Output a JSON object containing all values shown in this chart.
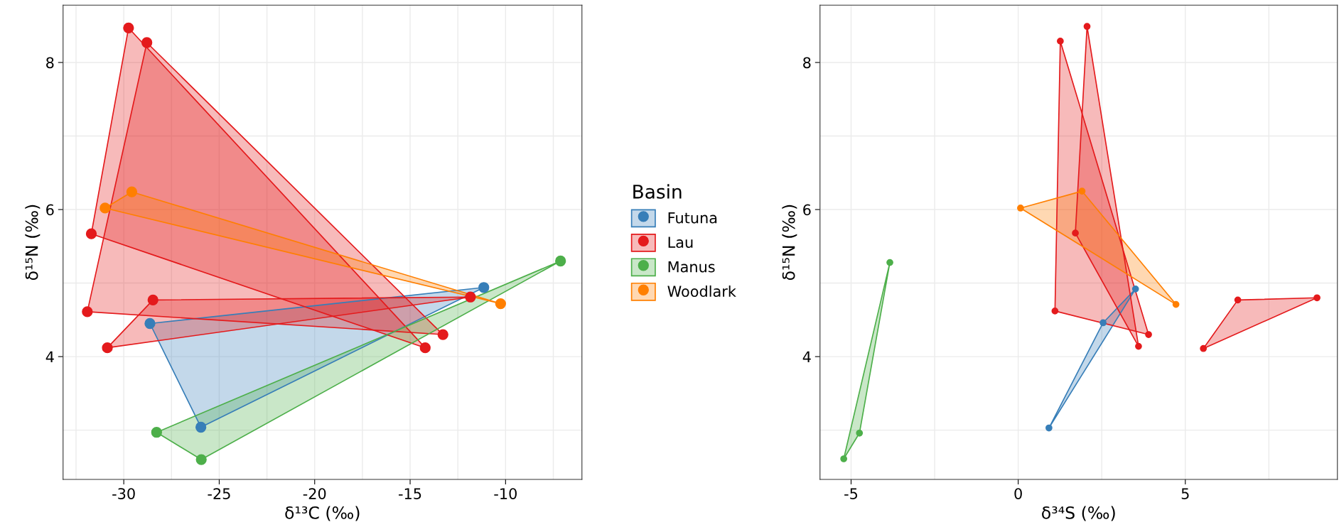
{
  "chart_data": [
    {
      "type": "scatter",
      "xlabel": "δ¹³C (‰)",
      "ylabel": "δ¹⁵N (‰)",
      "legend_title": "Basin",
      "legend": "right",
      "grid": true,
      "marker": "circle",
      "xlim": [
        -33.18,
        -6.0
      ],
      "ylim": [
        2.33,
        8.78
      ],
      "xticks": [
        {
          "value": -32.5,
          "label": null
        },
        -30,
        {
          "value": -27.5,
          "label": null
        },
        -25,
        {
          "value": -22.5,
          "label": null
        },
        -20,
        {
          "value": -17.5,
          "label": null
        },
        -15,
        {
          "value": -12.5,
          "label": null
        },
        -10,
        {
          "value": -7.5,
          "label": null
        }
      ],
      "yticks": [
        {
          "value": 3,
          "label": null
        },
        4,
        {
          "value": 5,
          "label": null
        },
        6,
        {
          "value": 7,
          "label": null
        },
        8
      ],
      "series": [
        {
          "name": "Futuna",
          "color": "#377eb8",
          "x": [
            -28.63,
            -11.14,
            -25.96
          ],
          "values": [
            4.45,
            4.94,
            3.04
          ]
        },
        {
          "name": "Lau",
          "color": "#e41a1c",
          "x": [
            -28.79,
            -31.91,
            -13.28
          ],
          "values": [
            8.27,
            4.61,
            4.3
          ]
        },
        {
          "color": "#e41a1c",
          "x": [
            -29.75,
            -31.7,
            -14.21
          ],
          "values": [
            8.47,
            5.67,
            4.12
          ]
        },
        {
          "color": "#e41a1c",
          "x": [
            -28.47,
            -11.84,
            -30.86
          ],
          "values": [
            4.77,
            4.81,
            4.12
          ]
        },
        {
          "name": "Manus",
          "color": "#4daf4a",
          "x": [
            -7.12,
            -28.28,
            -25.94
          ],
          "values": [
            5.3,
            2.97,
            2.6
          ]
        },
        {
          "name": "Woodlark",
          "color": "#ff7f00",
          "x": [
            -29.58,
            -30.98,
            -10.26
          ],
          "values": [
            6.24,
            6.02,
            4.72
          ]
        }
      ]
    },
    {
      "type": "scatter",
      "xlabel": "δ³⁴S (‰)",
      "ylabel": "δ¹⁵N (‰)",
      "grid": true,
      "marker": "circle",
      "xlim": [
        -5.93,
        9.55
      ],
      "ylim": [
        2.33,
        8.78
      ],
      "xticks": [
        -5,
        {
          "value": -2.5,
          "label": null
        },
        0,
        {
          "value": 2.5,
          "label": null
        },
        5,
        {
          "value": 7.5,
          "label": null
        }
      ],
      "yticks": [
        {
          "value": 3,
          "label": null
        },
        4,
        {
          "value": 5,
          "label": null
        },
        6,
        {
          "value": 7,
          "label": null
        },
        8
      ],
      "series": [
        {
          "color": "#377eb8",
          "x": [
            2.54,
            3.51,
            0.92
          ],
          "values": [
            4.46,
            4.92,
            3.03
          ]
        },
        {
          "color": "#e41a1c",
          "x": [
            1.26,
            1.1,
            3.9
          ],
          "values": [
            8.29,
            4.62,
            4.3
          ]
        },
        {
          "color": "#e41a1c",
          "x": [
            2.06,
            1.71,
            3.6
          ],
          "values": [
            8.49,
            5.68,
            4.14
          ]
        },
        {
          "color": "#e41a1c",
          "x": [
            6.57,
            8.94,
            5.54
          ],
          "values": [
            4.77,
            4.8,
            4.11
          ]
        },
        {
          "color": "#4daf4a",
          "x": [
            -3.84,
            -4.75,
            -5.22
          ],
          "values": [
            5.28,
            2.96,
            2.61
          ]
        },
        {
          "color": "#ff7f00",
          "x": [
            1.91,
            0.07,
            4.72
          ],
          "values": [
            6.25,
            6.02,
            4.71
          ]
        }
      ]
    }
  ]
}
